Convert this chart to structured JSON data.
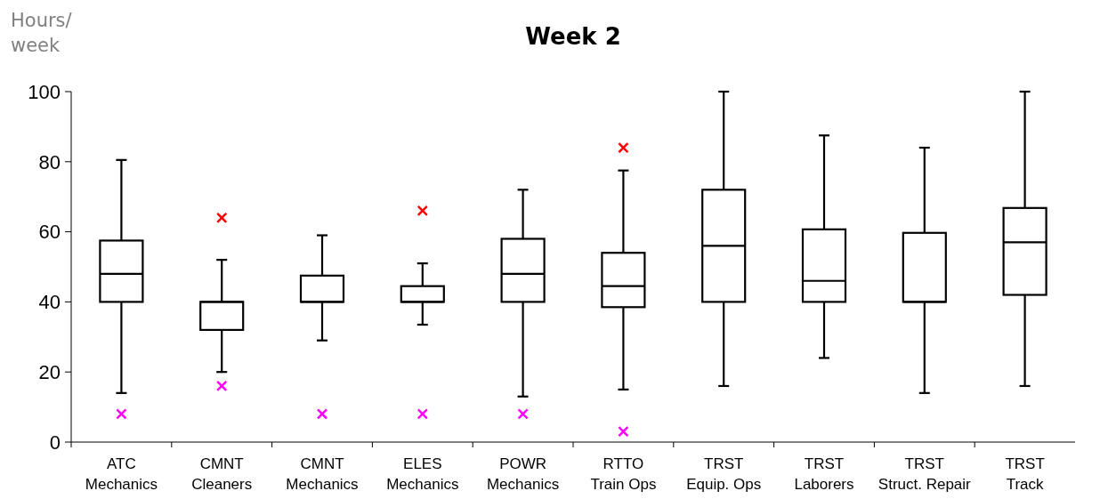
{
  "chart_data": {
    "type": "box",
    "title": "Week 2",
    "ylabel": "Hours/\nweek",
    "categories": [
      "ATC\nMechanics",
      "CMNT\nCleaners",
      "CMNT\nMechanics",
      "ELES\nMechanics",
      "POWR\nMechanics",
      "RTTO\nTrain Ops",
      "TRST\nEquip. Ops",
      "TRST\nLaborers",
      "TRST\nStruct. Repair",
      "TRST\nTrack"
    ],
    "ylim": [
      0,
      100
    ],
    "yticks": [
      0,
      20,
      40,
      60,
      80,
      100
    ],
    "grid": false,
    "marker": "cross",
    "series": [
      {
        "color": "#000000",
        "boxes": [
          {
            "low": 14,
            "q1": 40,
            "median": 48,
            "q3": 57.5,
            "high": 80.5
          },
          {
            "low": 20,
            "q1": 32,
            "median": 40,
            "q3": 40,
            "high": 52
          },
          {
            "low": 29,
            "q1": 40,
            "median": 40,
            "q3": 47.5,
            "high": 59
          },
          {
            "low": 33.5,
            "q1": 40,
            "median": 40,
            "q3": 44.5,
            "high": 51
          },
          {
            "low": 13,
            "q1": 40,
            "median": 48,
            "q3": 58,
            "high": 72
          },
          {
            "low": 15,
            "q1": 38.5,
            "median": 44.5,
            "q3": 54,
            "high": 77.5
          },
          {
            "low": 16,
            "q1": 40,
            "median": 56,
            "q3": 72,
            "high": 100
          },
          {
            "low": 24,
            "q1": 40,
            "median": 46,
            "q3": 60.7,
            "high": 87.5
          },
          {
            "low": 14,
            "q1": 40,
            "median": 40,
            "q3": 59.7,
            "high": 84
          },
          {
            "low": 16,
            "q1": 42,
            "median": 57,
            "q3": 66.8,
            "high": 100
          }
        ]
      },
      {
        "type": "scatter",
        "color": "#ff0000",
        "x": [
          "CMNT\nCleaners",
          "ELES\nMechanics",
          "RTTO\nTrain Ops"
        ],
        "values": [
          64,
          66,
          84
        ]
      },
      {
        "type": "scatter",
        "color": "#ff00ff",
        "x": [
          "ATC\nMechanics",
          "CMNT\nCleaners",
          "CMNT\nMechanics",
          "ELES\nMechanics",
          "POWR\nMechanics",
          "RTTO\nTrain Ops"
        ],
        "values": [
          8,
          16,
          8,
          8,
          8,
          3
        ]
      }
    ]
  }
}
